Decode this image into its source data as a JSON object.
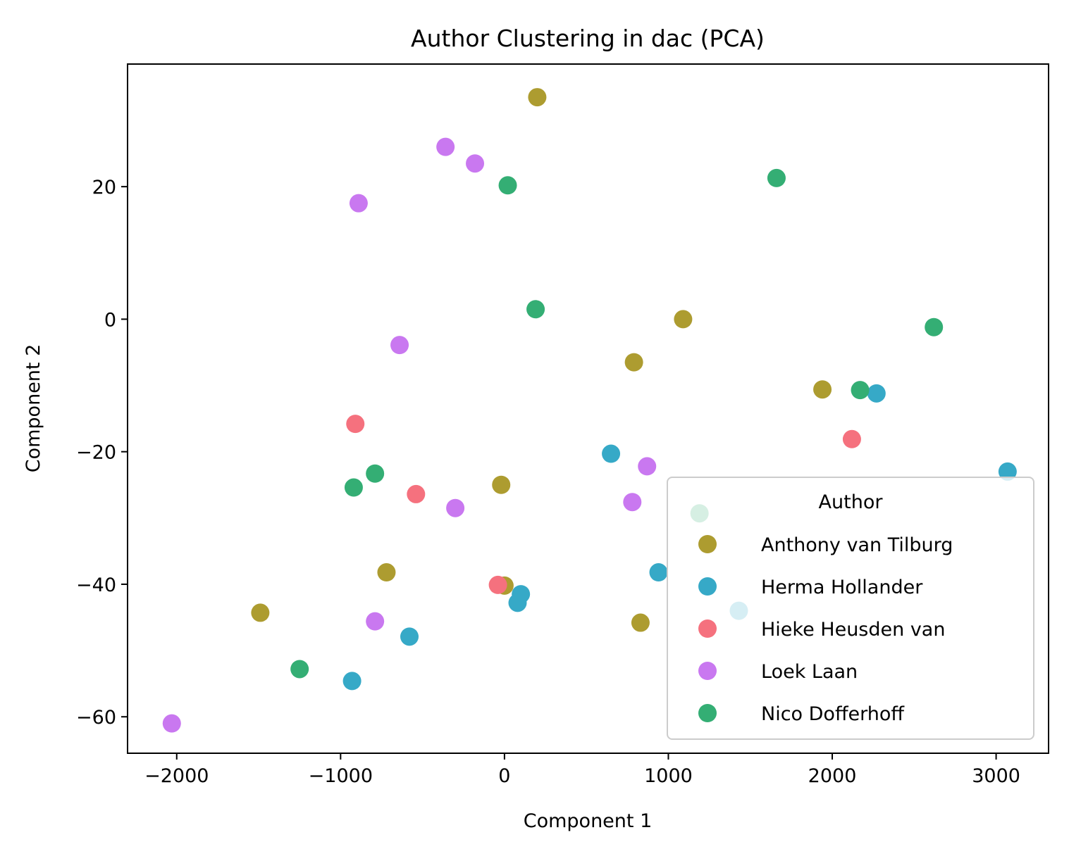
{
  "chart_data": {
    "type": "scatter",
    "title": "Author Clustering in dac (PCA)",
    "xlabel": "Component 1",
    "ylabel": "Component 2",
    "xlim": [
      -2300,
      3320
    ],
    "ylim": [
      -65.5,
      38.5
    ],
    "xticks": [
      -2000,
      -1000,
      0,
      1000,
      2000,
      3000
    ],
    "xtick_labels": [
      "−2000",
      "−1000",
      "0",
      "1000",
      "2000",
      "3000"
    ],
    "yticks": [
      -60,
      -40,
      -20,
      0,
      20
    ],
    "ytick_labels": [
      "−60",
      "−40",
      "−20",
      "0",
      "20"
    ],
    "grid": false,
    "legend": {
      "title": "Author",
      "placement": "lower-right"
    },
    "series": [
      {
        "name": "Anthony van Tilburg",
        "color": "#ad9c30",
        "points": [
          [
            200,
            33.5
          ],
          [
            1090,
            0
          ],
          [
            790,
            -6.5
          ],
          [
            1940,
            -10.6
          ],
          [
            -20,
            -25
          ],
          [
            -720,
            -38.2
          ],
          [
            0,
            -40.2
          ],
          [
            -1490,
            -44.3
          ],
          [
            830,
            -45.8
          ]
        ]
      },
      {
        "name": "Herma Hollander",
        "color": "#36a9c7",
        "points": [
          [
            2270,
            -11.2
          ],
          [
            650,
            -20.3
          ],
          [
            3070,
            -23
          ],
          [
            940,
            -38.2
          ],
          [
            100,
            -41.5
          ],
          [
            80,
            -42.8
          ],
          [
            1430,
            -44
          ],
          [
            -580,
            -47.9
          ],
          [
            -930,
            -54.6
          ]
        ]
      },
      {
        "name": "Hieke Heusden van",
        "color": "#f5717e",
        "points": [
          [
            -910,
            -15.8
          ],
          [
            2120,
            -18.1
          ],
          [
            -540,
            -26.4
          ],
          [
            -40,
            -40.1
          ]
        ]
      },
      {
        "name": "Loek Laan",
        "color": "#c978f0",
        "points": [
          [
            -360,
            26
          ],
          [
            -180,
            23.5
          ],
          [
            -890,
            17.5
          ],
          [
            -640,
            -3.9
          ],
          [
            870,
            -22.2
          ],
          [
            780,
            -27.6
          ],
          [
            -300,
            -28.5
          ],
          [
            -790,
            -45.6
          ],
          [
            -2030,
            -61
          ]
        ]
      },
      {
        "name": "Nico Dofferhoff",
        "color": "#34ae74",
        "points": [
          [
            20,
            20.2
          ],
          [
            1660,
            21.3
          ],
          [
            190,
            1.5
          ],
          [
            2620,
            -1.2
          ],
          [
            2170,
            -10.7
          ],
          [
            -790,
            -23.3
          ],
          [
            -920,
            -25.4
          ],
          [
            -1250,
            -52.8
          ],
          [
            1190,
            -29.3
          ]
        ]
      }
    ]
  }
}
